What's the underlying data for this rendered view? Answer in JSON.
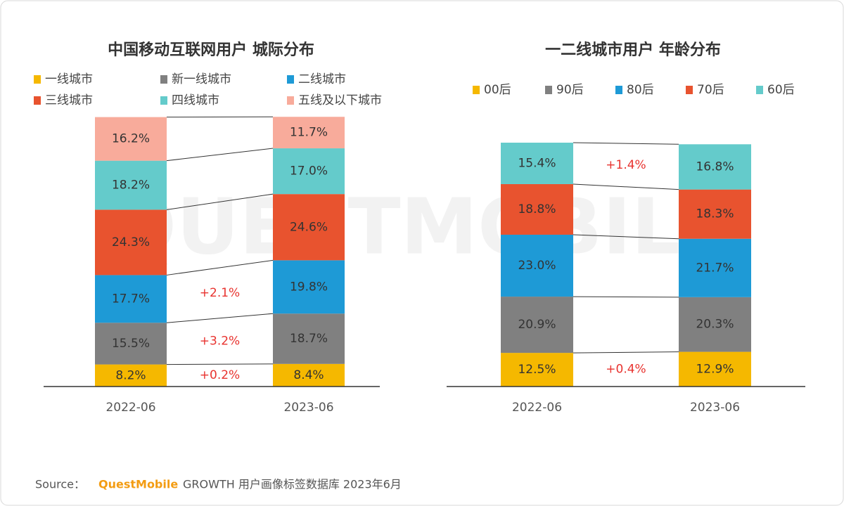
{
  "chart_data": [
    {
      "type": "stacked_bar",
      "title": "中国移动互联网用户 城际分布",
      "categories": [
        "2022-06",
        "2023-06"
      ],
      "ylim": [
        0,
        100
      ],
      "legend_position": "top",
      "series": [
        {
          "name": "一线城市",
          "color": "#f5b800",
          "values": [
            8.2,
            8.4
          ],
          "value_labels": [
            "8.2%",
            "8.4%"
          ]
        },
        {
          "name": "新一线城市",
          "color": "#808080",
          "values": [
            15.5,
            18.7
          ],
          "value_labels": [
            "15.5%",
            "18.7%"
          ]
        },
        {
          "name": "二线城市",
          "color": "#1e9ad6",
          "values": [
            17.7,
            19.8
          ],
          "value_labels": [
            "17.7%",
            "19.8%"
          ]
        },
        {
          "name": "三线城市",
          "color": "#e8532f",
          "values": [
            24.3,
            24.6
          ],
          "value_labels": [
            "24.3%",
            "24.6%"
          ]
        },
        {
          "name": "四线城市",
          "color": "#64cbcb",
          "values": [
            18.2,
            17.0
          ],
          "value_labels": [
            "18.2%",
            "17.0%"
          ]
        },
        {
          "name": "五线及以下城市",
          "color": "#f8ab9b",
          "values": [
            16.2,
            11.7
          ],
          "value_labels": [
            "16.2%",
            "11.7%"
          ]
        }
      ],
      "annotations": [
        "+2.1%",
        "+3.2%",
        "+0.2%"
      ]
    },
    {
      "type": "stacked_bar",
      "title": "一二线城市用户 年龄分布",
      "categories": [
        "2022-06",
        "2023-06"
      ],
      "ylim": [
        0,
        100
      ],
      "legend_position": "top",
      "series": [
        {
          "name": "00后",
          "color": "#f5b800",
          "values": [
            12.5,
            12.9
          ],
          "value_labels": [
            "12.5%",
            "12.9%"
          ]
        },
        {
          "name": "90后",
          "color": "#808080",
          "values": [
            20.9,
            20.3
          ],
          "value_labels": [
            "20.9%",
            "20.3%"
          ]
        },
        {
          "name": "80后",
          "color": "#1e9ad6",
          "values": [
            23.0,
            21.7
          ],
          "value_labels": [
            "23.0%",
            "21.7%"
          ]
        },
        {
          "name": "70后",
          "color": "#e8532f",
          "values": [
            18.8,
            18.3
          ],
          "value_labels": [
            "18.8%",
            "18.3%"
          ]
        },
        {
          "name": "60后",
          "color": "#64cbcb",
          "values": [
            15.4,
            16.8
          ],
          "value_labels": [
            "15.4%",
            "16.8%"
          ]
        }
      ],
      "annotations": [
        "+1.4%",
        "+0.4%"
      ]
    }
  ],
  "watermark": "QUESTMOBILE",
  "source": {
    "label": "Source：",
    "brand": "QuestMobile",
    "text": "GROWTH 用户画像标签数据库 2023年6月"
  }
}
